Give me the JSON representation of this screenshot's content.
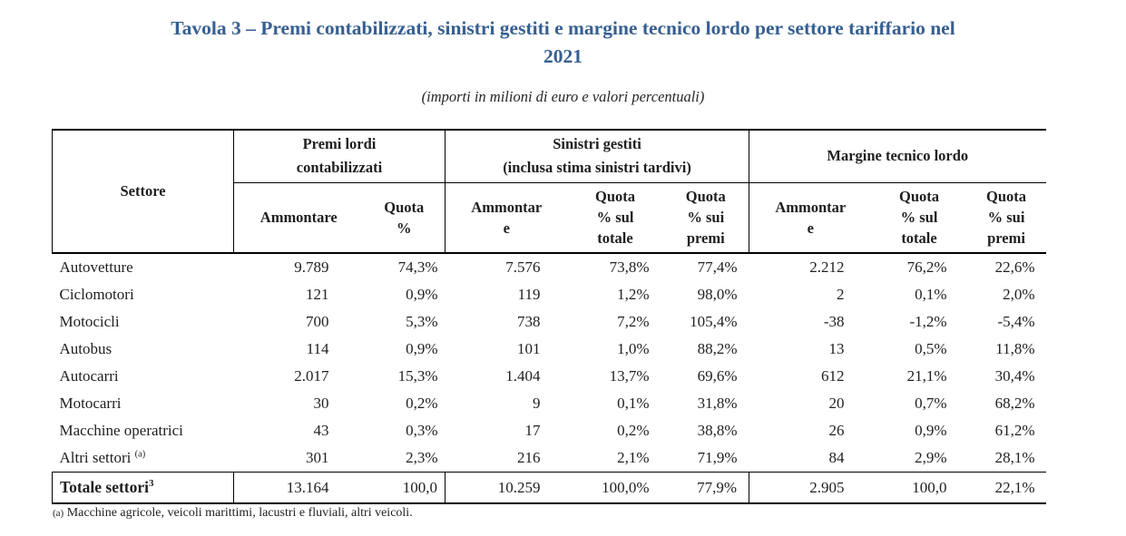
{
  "title": "Tavola 3 – Premi contabilizzati, sinistri gestiti e margine tecnico lordo per settore tariffario nel\n2021",
  "subtitle": "(importi in milioni di euro e valori percentuali)",
  "accent_color": "#365f91",
  "table": {
    "corner_header": "Settore",
    "groups": [
      {
        "label": "Premi lordi\ncontabilizzati",
        "columns": [
          "Ammontare",
          "Quota\n%"
        ]
      },
      {
        "label": "Sinistri gestiti\n(inclusa stima sinistri tardivi)",
        "columns": [
          "Ammontar\ne",
          "Quota\n% sul\ntotale",
          "Quota\n% sui\npremi"
        ]
      },
      {
        "label": "Margine tecnico lordo",
        "columns": [
          "Ammontar\ne",
          "Quota\n% sul\ntotale",
          "Quota\n% sui\npremi"
        ]
      }
    ],
    "rows": [
      {
        "name": "Autovetture",
        "name_sup": "",
        "values": [
          "9.789",
          "74,3%",
          "7.576",
          "73,8%",
          "77,4%",
          "2.212",
          "76,2%",
          "22,6%"
        ]
      },
      {
        "name": "Ciclomotori",
        "name_sup": "",
        "values": [
          "121",
          "0,9%",
          "119",
          "1,2%",
          "98,0%",
          "2",
          "0,1%",
          "2,0%"
        ]
      },
      {
        "name": "Motocicli",
        "name_sup": "",
        "values": [
          "700",
          "5,3%",
          "738",
          "7,2%",
          "105,4%",
          "-38",
          "-1,2%",
          "-5,4%"
        ]
      },
      {
        "name": "Autobus",
        "name_sup": "",
        "values": [
          "114",
          "0,9%",
          "101",
          "1,0%",
          "88,2%",
          "13",
          "0,5%",
          "11,8%"
        ]
      },
      {
        "name": "Autocarri",
        "name_sup": "",
        "values": [
          "2.017",
          "15,3%",
          "1.404",
          "13,7%",
          "69,6%",
          "612",
          "21,1%",
          "30,4%"
        ]
      },
      {
        "name": "Motocarri",
        "name_sup": "",
        "values": [
          "30",
          "0,2%",
          "9",
          "0,1%",
          "31,8%",
          "20",
          "0,7%",
          "68,2%"
        ]
      },
      {
        "name": "Macchine operatrici",
        "name_sup": "",
        "values": [
          "43",
          "0,3%",
          "17",
          "0,2%",
          "38,8%",
          "26",
          "0,9%",
          "61,2%"
        ]
      },
      {
        "name": "Altri settori",
        "name_sup": "(a)",
        "values": [
          "301",
          "2,3%",
          "216",
          "2,1%",
          "71,9%",
          "84",
          "2,9%",
          "28,1%"
        ]
      }
    ],
    "total_row": {
      "label": "Totale settori",
      "label_sup": "3",
      "values": [
        "13.164",
        "100,0",
        "10.259",
        "100,0%",
        "77,9%",
        "2.905",
        "100,0",
        "22,1%"
      ]
    },
    "footnote_marker": "(a)",
    "footnote_text": "Macchine agricole, veicoli marittimi, lacustri e fluviali, altri veicoli."
  }
}
